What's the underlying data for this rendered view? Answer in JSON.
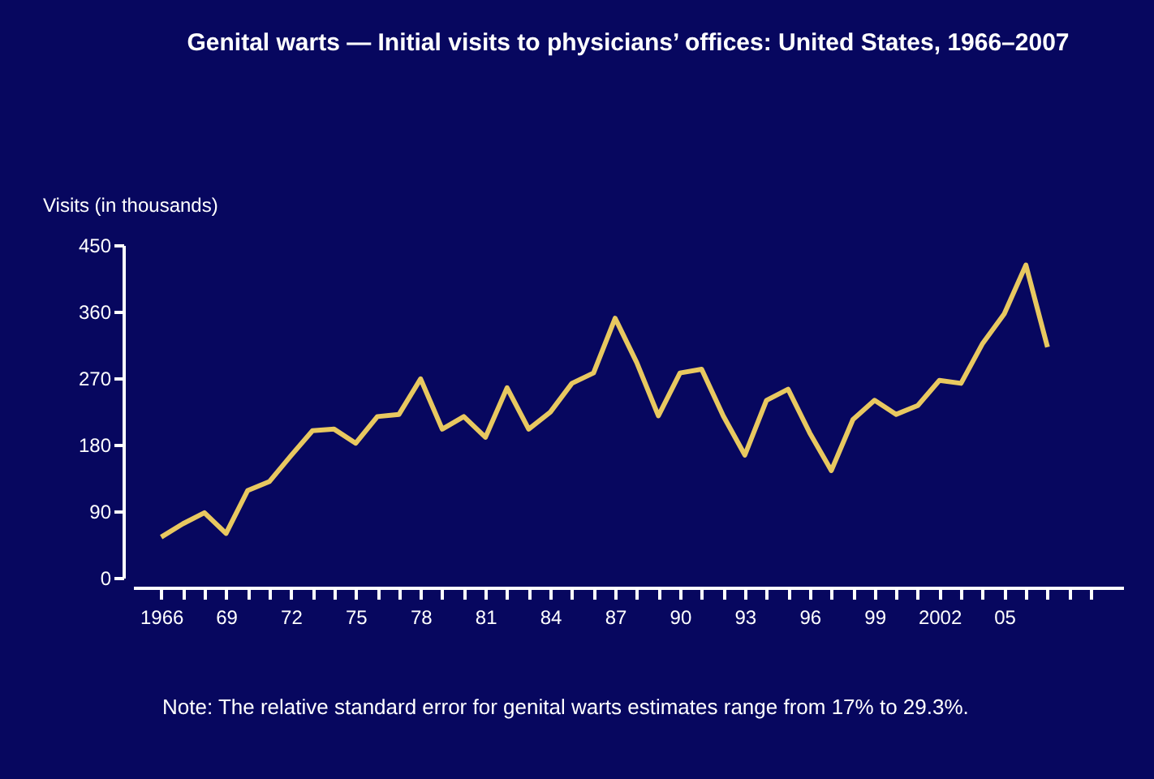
{
  "chart_data": {
    "type": "line",
    "title": "Genital warts  — Initial visits to physicians’ offices: United States, 1966–2007",
    "ylabel": "Visits (in thousands)",
    "x": [
      1966,
      1967,
      1968,
      1969,
      1970,
      1971,
      1972,
      1973,
      1974,
      1975,
      1976,
      1977,
      1978,
      1979,
      1980,
      1981,
      1982,
      1983,
      1984,
      1985,
      1986,
      1987,
      1988,
      1989,
      1990,
      1991,
      1992,
      1993,
      1994,
      1995,
      1996,
      1997,
      1998,
      1999,
      2000,
      2001,
      2002,
      2003,
      2004,
      2005,
      2006,
      2007
    ],
    "series": [
      {
        "color": "#e8c860",
        "values": [
          55,
          73,
          88,
          60,
          118,
          130,
          165,
          199,
          201,
          182,
          218,
          221,
          269,
          201,
          218,
          190,
          257,
          201,
          224,
          263,
          277,
          351,
          291,
          219,
          277,
          282,
          219,
          166,
          240,
          255,
          196,
          145,
          214,
          240,
          221,
          233,
          267,
          263,
          317,
          357,
          423,
          312
        ]
      }
    ],
    "xlim": [
      1964.7,
      2010.5
    ],
    "xticks": [
      {
        "value": 1966,
        "label": "1966"
      },
      {
        "value": 1967,
        "label": null
      },
      {
        "value": 1968,
        "label": null
      },
      {
        "value": 1969,
        "label": "69"
      },
      {
        "value": 1970,
        "label": null
      },
      {
        "value": 1971,
        "label": null
      },
      {
        "value": 1972,
        "label": "72"
      },
      {
        "value": 1973,
        "label": null
      },
      {
        "value": 1974,
        "label": null
      },
      {
        "value": 1975,
        "label": "75"
      },
      {
        "value": 1976,
        "label": null
      },
      {
        "value": 1977,
        "label": null
      },
      {
        "value": 1978,
        "label": "78"
      },
      {
        "value": 1979,
        "label": null
      },
      {
        "value": 1980,
        "label": null
      },
      {
        "value": 1981,
        "label": "81"
      },
      {
        "value": 1982,
        "label": null
      },
      {
        "value": 1983,
        "label": null
      },
      {
        "value": 1984,
        "label": "84"
      },
      {
        "value": 1985,
        "label": null
      },
      {
        "value": 1986,
        "label": null
      },
      {
        "value": 1987,
        "label": "87"
      },
      {
        "value": 1988,
        "label": null
      },
      {
        "value": 1989,
        "label": null
      },
      {
        "value": 1990,
        "label": "90"
      },
      {
        "value": 1991,
        "label": null
      },
      {
        "value": 1992,
        "label": null
      },
      {
        "value": 1993,
        "label": "93"
      },
      {
        "value": 1994,
        "label": null
      },
      {
        "value": 1995,
        "label": null
      },
      {
        "value": 1996,
        "label": "96"
      },
      {
        "value": 1997,
        "label": null
      },
      {
        "value": 1998,
        "label": null
      },
      {
        "value": 1999,
        "label": "99"
      },
      {
        "value": 2000,
        "label": null
      },
      {
        "value": 2001,
        "label": null
      },
      {
        "value": 2002,
        "label": "2002"
      },
      {
        "value": 2003,
        "label": null
      },
      {
        "value": 2004,
        "label": null
      },
      {
        "value": 2005,
        "label": "05"
      },
      {
        "value": 2006,
        "label": null
      },
      {
        "value": 2007,
        "label": null
      },
      {
        "value": 2008,
        "label": null
      },
      {
        "value": 2009,
        "label": null
      }
    ],
    "ylim": [
      0,
      450
    ],
    "yticks": [
      0,
      90,
      180,
      270,
      360,
      450
    ],
    "grid": false,
    "legend": false,
    "marker": "none",
    "line_style": "solid",
    "annotations": [
      "Note: The relative standard error for genital warts estimates range from 17% to 29.3%."
    ]
  }
}
